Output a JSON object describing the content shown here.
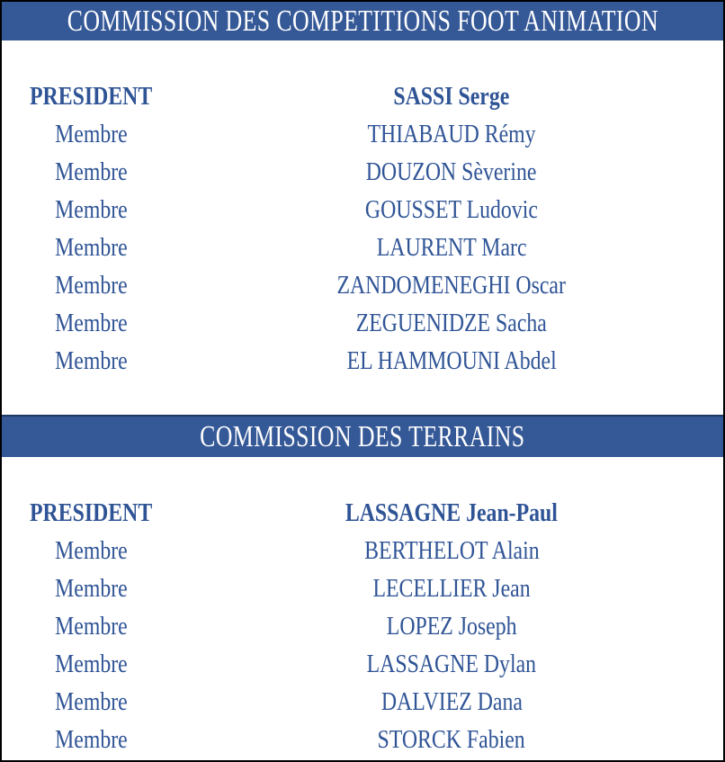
{
  "theme": {
    "banner_background": "#355897",
    "banner_top_edge": "#1F3864",
    "banner_text_color": "#FFFFFF",
    "body_text_color": "#2F5496",
    "frame_color": "#000000"
  },
  "sections": [
    {
      "title": "COMMISSION DES COMPETITIONS FOOT ANIMATION",
      "rows": [
        {
          "role": "PRESIDENT",
          "name": "SASSI Serge",
          "emphasis": "bold"
        },
        {
          "role": "Membre",
          "name": "THIABAUD Rémy",
          "emphasis": "regular"
        },
        {
          "role": "Membre",
          "name": "DOUZON Sèverine",
          "emphasis": "regular"
        },
        {
          "role": "Membre",
          "name": "GOUSSET Ludovic",
          "emphasis": "regular"
        },
        {
          "role": "Membre",
          "name": "LAURENT Marc",
          "emphasis": "regular"
        },
        {
          "role": "Membre",
          "name": "ZANDOMENEGHI Oscar",
          "emphasis": "regular"
        },
        {
          "role": "Membre",
          "name": "ZEGUENIDZE Sacha",
          "emphasis": "regular"
        },
        {
          "role": "Membre",
          "name": "EL HAMMOUNI Abdel",
          "emphasis": "regular"
        }
      ]
    },
    {
      "title": "COMMISSION DES TERRAINS",
      "rows": [
        {
          "role": "PRESIDENT",
          "name": "LASSAGNE Jean-Paul",
          "emphasis": "bold"
        },
        {
          "role": "Membre",
          "name": "BERTHELOT Alain",
          "emphasis": "regular"
        },
        {
          "role": "Membre",
          "name": "LECELLIER Jean",
          "emphasis": "regular"
        },
        {
          "role": "Membre",
          "name": "LOPEZ Joseph",
          "emphasis": "regular"
        },
        {
          "role": "Membre",
          "name": "LASSAGNE Dylan",
          "emphasis": "regular"
        },
        {
          "role": "Membre",
          "name": "DALVIEZ Dana",
          "emphasis": "regular"
        },
        {
          "role": "Membre",
          "name": "STORCK Fabien",
          "emphasis": "regular"
        }
      ]
    }
  ]
}
